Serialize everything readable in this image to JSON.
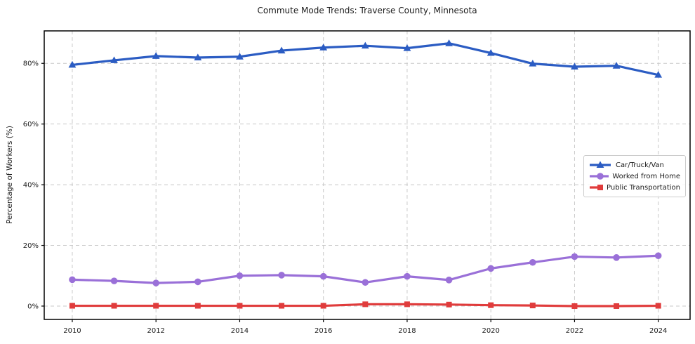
{
  "chart_data": {
    "type": "line",
    "title": "Commute Mode Trends: Traverse County, Minnesota",
    "xlabel": "",
    "ylabel": "Percentage of Workers (%)",
    "x": [
      2010,
      2011,
      2012,
      2013,
      2014,
      2015,
      2016,
      2017,
      2018,
      2019,
      2020,
      2021,
      2022,
      2023,
      2024
    ],
    "series": [
      {
        "name": "Car/Truck/Van",
        "color": "#2b5cc3",
        "marker": "triangle-up",
        "values": [
          79.5,
          81.0,
          82.4,
          81.9,
          82.2,
          84.2,
          85.2,
          85.8,
          85.0,
          86.6,
          83.4,
          79.9,
          78.9,
          79.2,
          76.2
        ]
      },
      {
        "name": "Worked from Home",
        "color": "#9a70d8",
        "marker": "circle",
        "values": [
          8.7,
          8.3,
          7.6,
          8.0,
          10.0,
          10.2,
          9.8,
          7.8,
          9.8,
          8.6,
          12.4,
          14.4,
          16.3,
          16.0,
          16.6
        ]
      },
      {
        "name": "Public Transportation",
        "color": "#e03c3c",
        "marker": "square",
        "values": [
          0.1,
          0.1,
          0.1,
          0.1,
          0.1,
          0.1,
          0.1,
          0.6,
          0.6,
          0.5,
          0.3,
          0.2,
          0.0,
          0.0,
          0.1
        ]
      }
    ],
    "xticks": [
      2010,
      2012,
      2014,
      2016,
      2018,
      2020,
      2022,
      2024
    ],
    "xtick_labels": [
      "2010",
      "2012",
      "2014",
      "2016",
      "2018",
      "2020",
      "2022",
      "2024"
    ],
    "yticks": [
      0,
      20,
      40,
      60,
      80
    ],
    "ytick_labels": [
      "0%",
      "20%",
      "40%",
      "60%",
      "80%"
    ],
    "xlim": [
      2009.33,
      2024.76
    ],
    "ylim": [
      -4.4,
      90.7
    ],
    "grid": true,
    "grid_color": "#c9c9c9",
    "axis_color": "#000000",
    "legend_position": "center-right"
  }
}
